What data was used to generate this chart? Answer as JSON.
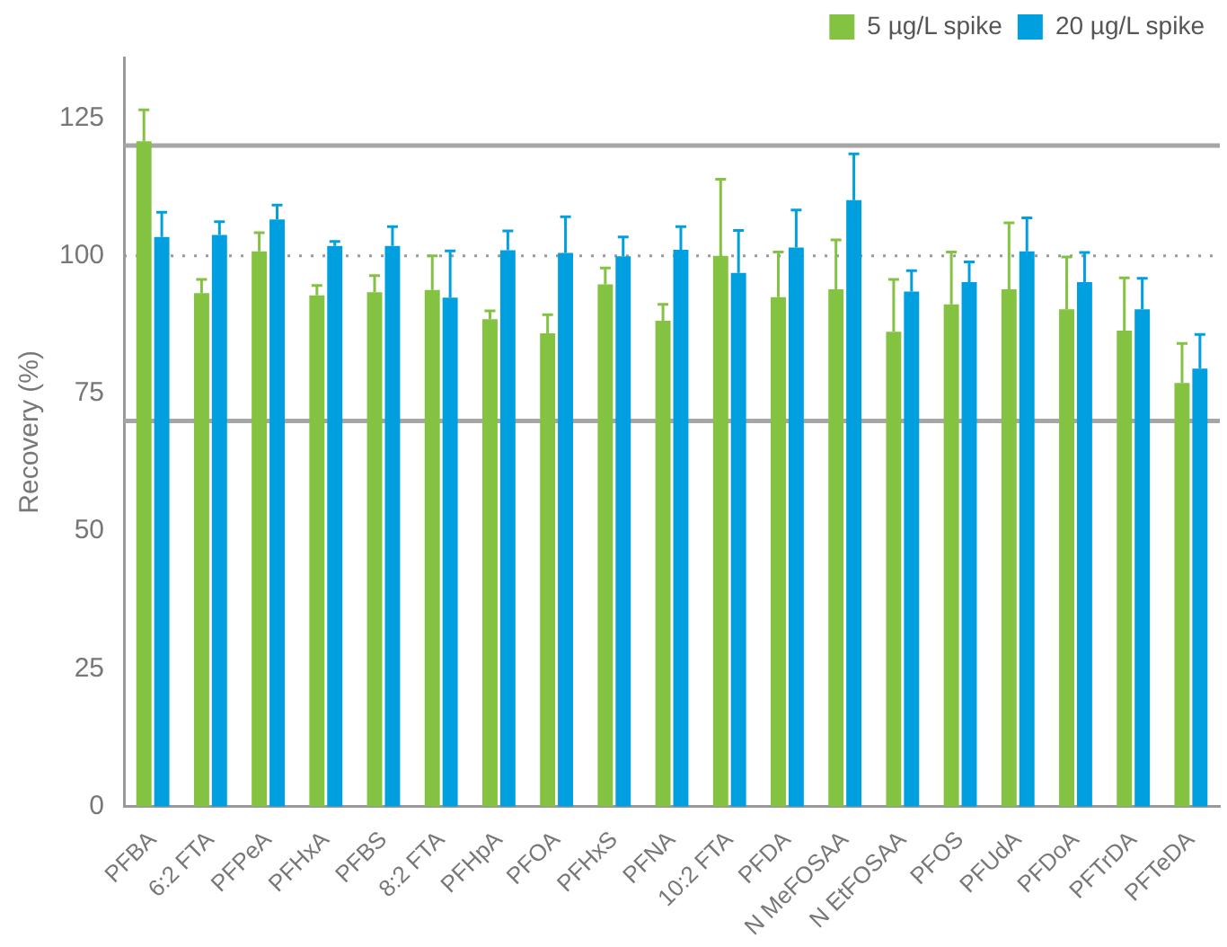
{
  "chart_data": {
    "type": "bar",
    "ylabel": "Recovery (%)",
    "categories": [
      "PFBA",
      "6:2 FTA",
      "PFPeA",
      "PFHxA",
      "PFBS",
      "8:2 FTA",
      "PFHpA",
      "PFOA",
      "PFHxS",
      "PFNA",
      "10:2 FTA",
      "PFDA",
      "N MeFOSAA",
      "N EtFOSAA",
      "PFOS",
      "PFUdA",
      "PFDoA",
      "PFTrDA",
      "PFTeDA"
    ],
    "series": [
      {
        "name": "5 µg/L spike",
        "color": "#84c241",
        "values": [
          120.8,
          93.2,
          100.8,
          92.8,
          93.4,
          93.8,
          88.5,
          85.9,
          94.8,
          88.2,
          100,
          92.5,
          93.9,
          86.2,
          91.2,
          93.9,
          90.3,
          86.4,
          76.9
        ],
        "errors": [
          [
            120.8,
            126.5
          ],
          [
            93.2,
            95.7
          ],
          [
            100.8,
            104.2
          ],
          [
            92.8,
            94.6
          ],
          [
            93.4,
            96.4
          ],
          [
            93.8,
            100
          ],
          [
            88.5,
            90
          ],
          [
            85.9,
            89.3
          ],
          [
            94.8,
            97.8
          ],
          [
            88.2,
            91.2
          ],
          [
            100,
            113.9
          ],
          [
            92.5,
            100.7
          ],
          [
            93.9,
            102.9
          ],
          [
            86.2,
            95.7
          ],
          [
            91.2,
            100.7
          ],
          [
            93.9,
            106
          ],
          [
            90.3,
            99.8
          ],
          [
            86.4,
            96
          ],
          [
            76.9,
            84.1
          ]
        ]
      },
      {
        "name": "20 µg/L spike",
        "color": "#00a0e0",
        "values": [
          103.4,
          103.8,
          106.6,
          101.8,
          101.8,
          92.4,
          101,
          100.5,
          99.9,
          101.1,
          96.9,
          101.5,
          110.1,
          93.5,
          95.2,
          100.8,
          95.2,
          90.3,
          79.5
        ],
        "errors": [
          [
            103.4,
            107.9
          ],
          [
            103.8,
            106.2
          ],
          [
            106.6,
            109.2
          ],
          [
            101.8,
            102.6
          ],
          [
            101.8,
            105.3
          ],
          [
            92.4,
            100.9
          ],
          [
            101,
            104.5
          ],
          [
            100.5,
            107.1
          ],
          [
            99.9,
            103.4
          ],
          [
            101.1,
            105.3
          ],
          [
            96.9,
            104.6
          ],
          [
            101.5,
            108.3
          ],
          [
            110.1,
            118.5
          ],
          [
            93.5,
            97.3
          ],
          [
            95.2,
            98.9
          ],
          [
            100.8,
            106.9
          ],
          [
            95.2,
            100.6
          ],
          [
            90.3,
            95.9
          ],
          [
            79.5,
            85.7
          ]
        ]
      }
    ],
    "ylim": [
      0,
      136
    ],
    "yticks": [
      0,
      25,
      50,
      75,
      100,
      125
    ],
    "grid": false,
    "legend": "top right",
    "ref_lines": [
      {
        "axis": "y",
        "value": 120,
        "color": "#a6a6a6",
        "line_style": "solid"
      },
      {
        "axis": "y",
        "value": 100,
        "color": "#999999",
        "line_style": "dotted"
      },
      {
        "axis": "y",
        "value": 70,
        "color": "#a6a6a6",
        "line_style": "solid"
      }
    ]
  }
}
